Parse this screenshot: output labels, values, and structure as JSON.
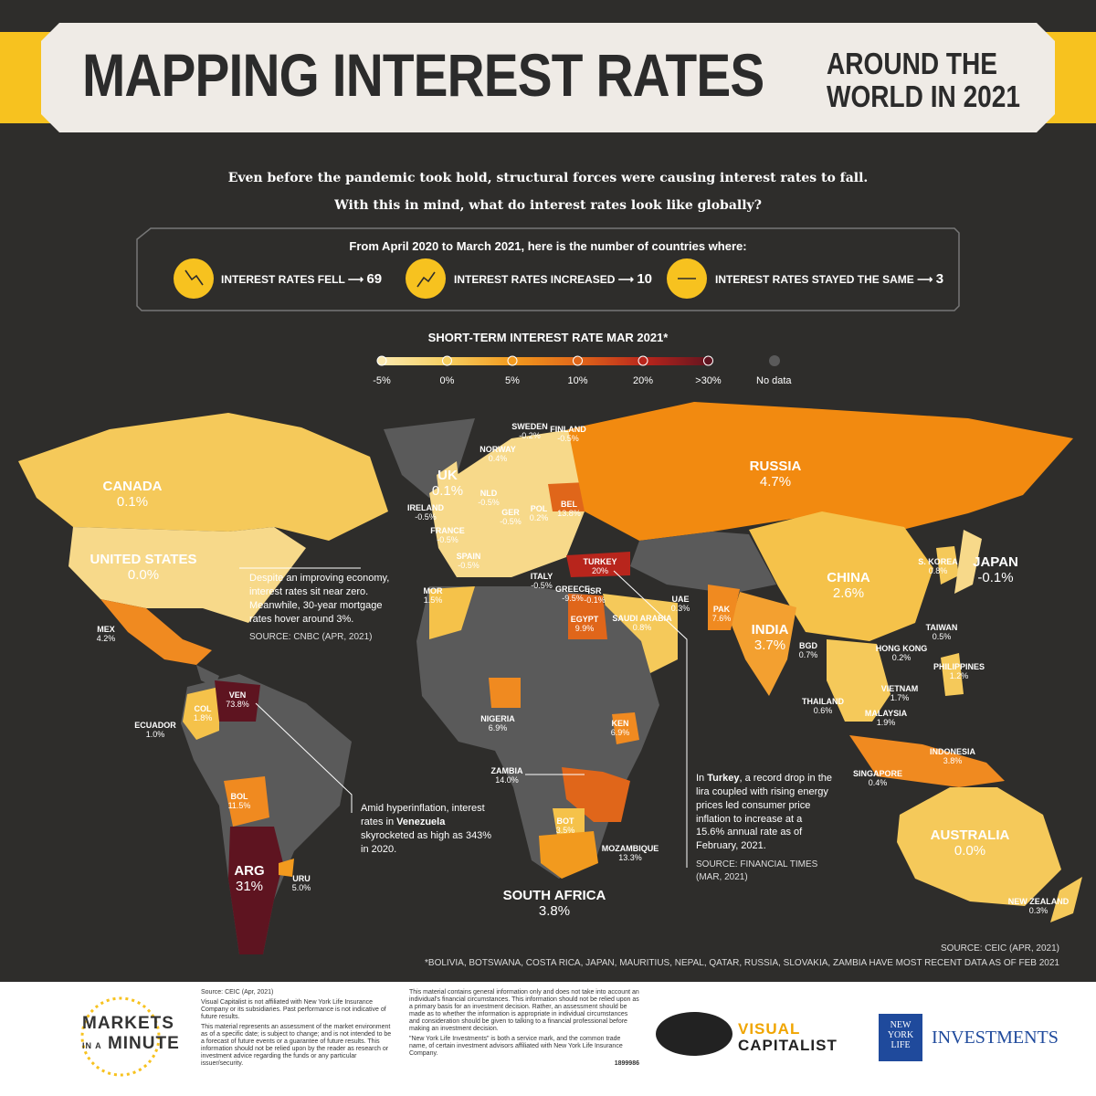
{
  "header": {
    "title": "MAPPING INTEREST RATES",
    "subtitle_1": "AROUND THE",
    "subtitle_2": "WORLD IN 2021"
  },
  "intro": [
    "Even before the pandemic took hold, structural forces were causing interest rates to fall.",
    "With this in mind, what do interest rates look like globally?"
  ],
  "stats": {
    "heading": "From April 2020 to March 2021, here is the number of countries where:",
    "items": [
      {
        "label": "INTEREST RATES FELL",
        "count": 69
      },
      {
        "label": "INTEREST RATES INCREASED",
        "count": 10
      },
      {
        "label": "INTEREST RATES STAYED THE SAME",
        "count": 3
      }
    ]
  },
  "legend": {
    "title": "SHORT-TERM INTEREST RATE MAR 2021*",
    "stops": [
      {
        "label": "-5%",
        "color": "#fbe9b0"
      },
      {
        "label": "0%",
        "color": "#f6cf62"
      },
      {
        "label": "5%",
        "color": "#f29a1e"
      },
      {
        "label": "10%",
        "color": "#e0661a"
      },
      {
        "label": "20%",
        "color": "#b8251c"
      },
      {
        "label": ">30%",
        "color": "#5e1420"
      }
    ],
    "nodata": "No data"
  },
  "countries": [
    {
      "name": "CANADA",
      "rate": "0.1%"
    },
    {
      "name": "UNITED STATES",
      "rate": "0.0%"
    },
    {
      "name": "MEX",
      "rate": "4.2%"
    },
    {
      "name": "ECUADOR",
      "rate": "1.0%"
    },
    {
      "name": "COL",
      "rate": "1.8%"
    },
    {
      "name": "VEN",
      "rate": "73.8%"
    },
    {
      "name": "BOL",
      "rate": "11.5%"
    },
    {
      "name": "ARG",
      "rate": "31%"
    },
    {
      "name": "URU",
      "rate": "5.0%"
    },
    {
      "name": "SWEDEN",
      "rate": "-0.2%"
    },
    {
      "name": "FINLAND",
      "rate": "-0.5%"
    },
    {
      "name": "NORWAY",
      "rate": "0.4%"
    },
    {
      "name": "UK",
      "rate": "0.1%"
    },
    {
      "name": "NLD",
      "rate": "-0.5%"
    },
    {
      "name": "IRELAND",
      "rate": "-0.5%"
    },
    {
      "name": "GER",
      "rate": "-0.5%"
    },
    {
      "name": "POL",
      "rate": "0.2%"
    },
    {
      "name": "BEL",
      "rate": "13.8%"
    },
    {
      "name": "FRANCE",
      "rate": "-0.5%"
    },
    {
      "name": "SPAIN",
      "rate": "-0.5%"
    },
    {
      "name": "ITALY",
      "rate": "-0.5%"
    },
    {
      "name": "GREECE",
      "rate": "-9.5%"
    },
    {
      "name": "ISR",
      "rate": "-0.1%"
    },
    {
      "name": "TURKEY",
      "rate": "20%"
    },
    {
      "name": "MOR",
      "rate": "1.5%"
    },
    {
      "name": "EGYPT",
      "rate": "9.9%"
    },
    {
      "name": "SAUDI ARABIA",
      "rate": "0.8%"
    },
    {
      "name": "UAE",
      "rate": "0.3%"
    },
    {
      "name": "PAK",
      "rate": "7.6%"
    },
    {
      "name": "INDIA",
      "rate": "3.7%"
    },
    {
      "name": "BGD",
      "rate": "0.7%"
    },
    {
      "name": "RUSSIA",
      "rate": "4.7%"
    },
    {
      "name": "CHINA",
      "rate": "2.6%"
    },
    {
      "name": "S. KOREA",
      "rate": "0.8%"
    },
    {
      "name": "JAPAN",
      "rate": "-0.1%"
    },
    {
      "name": "TAIWAN",
      "rate": "0.5%"
    },
    {
      "name": "HONG KONG",
      "rate": "0.2%"
    },
    {
      "name": "PHILIPPINES",
      "rate": "1.2%"
    },
    {
      "name": "VIETNAM",
      "rate": "1.7%"
    },
    {
      "name": "THAILAND",
      "rate": "0.6%"
    },
    {
      "name": "MALAYSIA",
      "rate": "1.9%"
    },
    {
      "name": "INDONESIA",
      "rate": "3.8%"
    },
    {
      "name": "SINGAPORE",
      "rate": "0.4%"
    },
    {
      "name": "NIGERIA",
      "rate": "6.9%"
    },
    {
      "name": "KEN",
      "rate": "6.9%"
    },
    {
      "name": "ZAMBIA",
      "rate": "14.0%"
    },
    {
      "name": "BOT",
      "rate": "3.5%"
    },
    {
      "name": "MOZAMBIQUE",
      "rate": "13.3%"
    },
    {
      "name": "SOUTH AFRICA",
      "rate": "3.8%"
    },
    {
      "name": "AUSTRALIA",
      "rate": "0.0%"
    },
    {
      "name": "NEW ZEALAND",
      "rate": "0.3%"
    }
  ],
  "annotations": {
    "us": {
      "text": "Despite an improving economy, interest rates sit near zero. Meanwhile, 30-year mortgage rates hover around 3%.",
      "source": "SOURCE: CNBC (APR, 2021)"
    },
    "venezuela": {
      "before": "Amid hyperinflation, interest rates in ",
      "bold": "Venezuela",
      "after": " skyrocketed as high as 343% in 2020."
    },
    "turkey": {
      "before": "In ",
      "bold": "Turkey",
      "after": ", a record drop in the lira coupled with rising energy prices led consumer price inflation to increase at a 15.6% annual rate as of February, 2021.",
      "source": "SOURCE: FINANCIAL TIMES (MAR, 2021)"
    }
  },
  "sources": {
    "main": "SOURCE: CEIC (APR, 2021)",
    "note": "*BOLIVIA, BOTSWANA, COSTA RICA, JAPAN, MAURITIUS, NEPAL, QATAR, RUSSIA, SLOVAKIA, ZAMBIA HAVE MOST RECENT DATA AS OF FEB 2021"
  },
  "footer": {
    "brand_1": "MARKETS",
    "brand_2a": "IN A",
    "brand_2b": "MINUTE",
    "disclaimer_1": [
      "Source: CEIC (Apr, 2021)",
      "Visual Capitalist is not affiliated with New York Life Insurance Company or its subsidiaries. Past performance is not indicative of future results.",
      "This material represents an assessment of the market environment as of a specific date; is subject to change; and is not intended to be a forecast of future events or a guarantee of future results. This information should not be relied upon by the reader as research or investment advice regarding the funds or any particular issuer/security."
    ],
    "disclaimer_2": [
      "This material contains general information only and does not take into account an individual's financial circumstances. This information should not be relied upon as a primary basis for an investment decision. Rather, an assessment should be made as to whether the information is appropriate in individual circumstances and consideration should be given to talking to a financial professional before making an investment decision.",
      "\"New York Life Investments\" is both a service mark, and the common trade name, of certain investment advisors affiliated with New York Life Insurance Company."
    ],
    "code": "1899986",
    "vc_1": "VISUAL",
    "vc_2": "CAPITALIST",
    "nyl_logo": "NEW YORK LIFE",
    "nyl": "INVESTMENTS"
  }
}
